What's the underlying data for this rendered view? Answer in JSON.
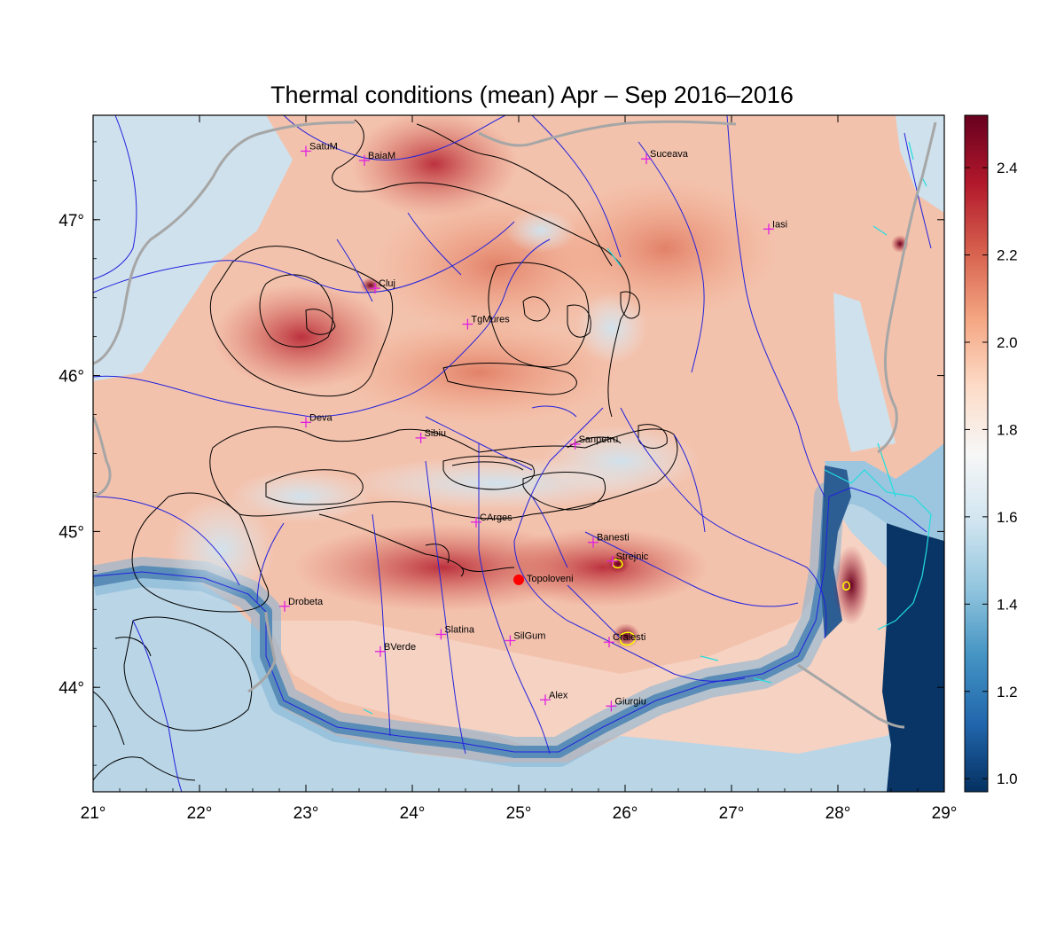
{
  "title": "Thermal conditions (mean) Apr – Sep  2016–2016",
  "map": {
    "lon_range": [
      21,
      29
    ],
    "lat_range": [
      43.33,
      47.67
    ],
    "lon_ticks": [
      {
        "value": 21,
        "label": "21°"
      },
      {
        "value": 22,
        "label": "22°"
      },
      {
        "value": 23,
        "label": "23°"
      },
      {
        "value": 24,
        "label": "24°"
      },
      {
        "value": 25,
        "label": "25°"
      },
      {
        "value": 26,
        "label": "26°"
      },
      {
        "value": 27,
        "label": "27°"
      },
      {
        "value": 28,
        "label": "28°"
      },
      {
        "value": 29,
        "label": "29°"
      }
    ],
    "lat_ticks": [
      {
        "value": 44,
        "label": "44°"
      },
      {
        "value": 45,
        "label": "45°"
      },
      {
        "value": 46,
        "label": "46°"
      },
      {
        "value": 47,
        "label": "47°"
      }
    ],
    "cities": [
      {
        "name": "SatuM",
        "lon": 23.0,
        "lat": 47.44
      },
      {
        "name": "BaiaM",
        "lon": 23.55,
        "lat": 47.38
      },
      {
        "name": "Suceava",
        "lon": 26.2,
        "lat": 47.39
      },
      {
        "name": "Iasi",
        "lon": 27.35,
        "lat": 46.94
      },
      {
        "name": "Cluj",
        "lon": 23.65,
        "lat": 46.56
      },
      {
        "name": "TgMures",
        "lon": 24.52,
        "lat": 46.33
      },
      {
        "name": "Deva",
        "lon": 23.0,
        "lat": 45.7
      },
      {
        "name": "Sibiu",
        "lon": 24.08,
        "lat": 45.6
      },
      {
        "name": "Sanpetru",
        "lon": 25.53,
        "lat": 45.56
      },
      {
        "name": "CArges",
        "lon": 24.6,
        "lat": 45.06
      },
      {
        "name": "Banesti",
        "lon": 25.7,
        "lat": 44.93
      },
      {
        "name": "Strejnic",
        "lon": 25.88,
        "lat": 44.81
      },
      {
        "name": "Drobeta",
        "lon": 22.8,
        "lat": 44.52
      },
      {
        "name": "Slatina",
        "lon": 24.27,
        "lat": 44.34
      },
      {
        "name": "SilGum",
        "lon": 24.92,
        "lat": 44.3
      },
      {
        "name": "Craiesti",
        "lon": 25.85,
        "lat": 44.29
      },
      {
        "name": "BVerde",
        "lon": 23.7,
        "lat": 44.23
      },
      {
        "name": "Alex",
        "lon": 25.25,
        "lat": 43.92
      },
      {
        "name": "Giurgiu",
        "lon": 25.87,
        "lat": 43.88
      }
    ],
    "highlight_point": {
      "name": "Topoloveni",
      "lon": 25.0,
      "lat": 44.69,
      "color": "#ff0000"
    },
    "colors": {
      "city_marker": "#e020e0",
      "rivers": "#2222dd",
      "borders": "#a6a6a6",
      "contours": "#000000",
      "lakes": "#22dddd",
      "highlight_contour": "#ffff00"
    }
  },
  "colorbar": {
    "min": 0.97,
    "max": 2.52,
    "ticks": [
      {
        "value": 1.0,
        "label": "1.0"
      },
      {
        "value": 1.2,
        "label": "1.2"
      },
      {
        "value": 1.4,
        "label": "1.4"
      },
      {
        "value": 1.6,
        "label": "1.6"
      },
      {
        "value": 1.8,
        "label": "1.8"
      },
      {
        "value": 2.0,
        "label": "2.0"
      },
      {
        "value": 2.2,
        "label": "2.2"
      },
      {
        "value": 2.4,
        "label": "2.4"
      }
    ],
    "colormap": [
      "#053061",
      "#2166ac",
      "#4393c3",
      "#92c5de",
      "#d1e5f0",
      "#f7f7f7",
      "#fddbc7",
      "#f4a582",
      "#d6604d",
      "#b2182b",
      "#67001f"
    ]
  }
}
